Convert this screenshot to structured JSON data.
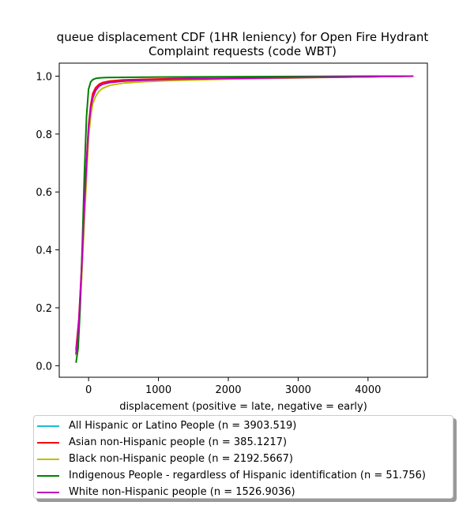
{
  "chart_data": {
    "type": "line",
    "title": [
      "queue displacement CDF (1HR leniency) for Open Fire Hydrant",
      "Complaint  requests (code WBT)"
    ],
    "xlabel": "displacement (positive = late, negative = early)",
    "ylabel": "",
    "xlim": [
      -420,
      4850
    ],
    "ylim": [
      -0.04,
      1.045
    ],
    "xticks": [
      0,
      1000,
      2000,
      3000,
      4000
    ],
    "xtick_labels": [
      "0",
      "1000",
      "2000",
      "3000",
      "4000"
    ],
    "yticks": [
      0.0,
      0.2,
      0.4,
      0.6,
      0.8,
      1.0
    ],
    "ytick_labels": [
      "0.0",
      "0.2",
      "0.4",
      "0.6",
      "0.8",
      "1.0"
    ],
    "grid": false,
    "legend_position": "below",
    "series": [
      {
        "name": "All Hispanic or Latino People (n = 3903.519)",
        "color": "#17becf",
        "x": [
          -180,
          -140,
          -100,
          -60,
          -20,
          0,
          30,
          60,
          100,
          150,
          200,
          300,
          500,
          800,
          1200,
          2000,
          3000,
          4000,
          4650
        ],
        "y": [
          0.04,
          0.15,
          0.33,
          0.55,
          0.74,
          0.82,
          0.89,
          0.925,
          0.95,
          0.965,
          0.972,
          0.978,
          0.983,
          0.986,
          0.989,
          0.992,
          0.995,
          0.998,
          1.0
        ]
      },
      {
        "name": "Asian non-Hispanic people (n = 385.1217)",
        "color": "#ff0000",
        "x": [
          -180,
          -140,
          -100,
          -60,
          -20,
          0,
          30,
          60,
          100,
          150,
          200,
          300,
          500,
          800,
          1200,
          2000,
          3000,
          4000,
          4650
        ],
        "y": [
          0.055,
          0.16,
          0.34,
          0.56,
          0.75,
          0.83,
          0.9,
          0.94,
          0.96,
          0.972,
          0.978,
          0.983,
          0.987,
          0.989,
          0.991,
          0.993,
          0.995,
          0.998,
          1.0
        ]
      },
      {
        "name": "Black non-Hispanic people (n = 2192.5667)",
        "color": "#bfbf00",
        "x": [
          -180,
          -140,
          -100,
          -60,
          -20,
          0,
          30,
          60,
          100,
          150,
          200,
          300,
          500,
          800,
          1200,
          2000,
          3000,
          4000,
          4650
        ],
        "y": [
          0.035,
          0.13,
          0.3,
          0.5,
          0.7,
          0.79,
          0.86,
          0.905,
          0.93,
          0.948,
          0.958,
          0.968,
          0.976,
          0.981,
          0.985,
          0.99,
          0.994,
          0.998,
          1.0
        ]
      },
      {
        "name": "Indigenous People - regardless of Hispanic identification (n = 51.756)",
        "color": "#008000",
        "x": [
          -180,
          -150,
          -120,
          -90,
          -60,
          -30,
          0,
          30,
          60,
          100,
          150,
          250,
          500,
          1000,
          2000,
          3000,
          4000,
          4650
        ],
        "y": [
          0.01,
          0.06,
          0.2,
          0.42,
          0.66,
          0.86,
          0.955,
          0.98,
          0.988,
          0.992,
          0.994,
          0.995,
          0.996,
          0.997,
          0.998,
          0.999,
          1.0,
          1.0
        ]
      },
      {
        "name": "White non-Hispanic people (n = 1526.9036)",
        "color": "#bf00bf",
        "x": [
          -180,
          -140,
          -100,
          -60,
          -20,
          0,
          30,
          60,
          100,
          150,
          200,
          300,
          500,
          800,
          1200,
          2000,
          3000,
          4000,
          4650
        ],
        "y": [
          0.04,
          0.15,
          0.33,
          0.55,
          0.74,
          0.82,
          0.89,
          0.925,
          0.95,
          0.965,
          0.972,
          0.978,
          0.983,
          0.986,
          0.989,
          0.992,
          0.995,
          0.998,
          1.0
        ]
      }
    ]
  }
}
